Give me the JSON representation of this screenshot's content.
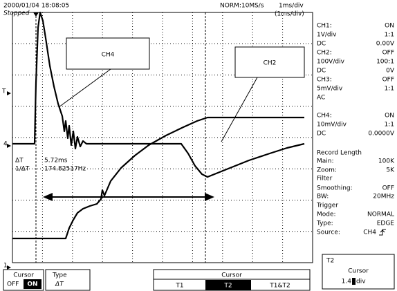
{
  "header": {
    "datetime": "2000/01/04  18:08:05",
    "status": "Stopped",
    "sampling": "NORM:10MS/s",
    "timebase": "1ms/div",
    "zoom_timebase": "(1ms/div)"
  },
  "screen": {
    "markers": [
      "T",
      "4",
      "1"
    ],
    "readout": [
      [
        "ΔT",
        "5.72ms"
      ],
      [
        "1/ΔT",
        "174.82517Hz"
      ]
    ],
    "callouts": [
      "CH4",
      "CH2"
    ]
  },
  "side_panel": [
    [
      "CH1:",
      "ON"
    ],
    [
      "1V/div",
      "1:1"
    ],
    [
      "DC",
      "0.00V"
    ],
    [
      "CH2:",
      "OFF"
    ],
    [
      "100V/div",
      "100:1"
    ],
    [
      "DC",
      "0V"
    ],
    [
      "CH3:",
      "OFF"
    ],
    [
      "5mV/div",
      "1:1"
    ],
    [
      "AC",
      ""
    ],
    [
      "CH4:",
      "ON"
    ],
    [
      "10mV/div",
      "1:1"
    ],
    [
      "DC",
      "0.0000V"
    ],
    [
      "Record Length",
      ""
    ],
    [
      "Main:",
      "100K"
    ],
    [
      "Zoom:",
      "5K"
    ],
    [
      "Filter",
      ""
    ],
    [
      "Smoothing:",
      "OFF"
    ],
    [
      "BW:",
      "20MHz"
    ],
    [
      "Trigger",
      ""
    ],
    [
      "Mode:",
      "NORMAL"
    ],
    [
      "Type:",
      "EDGE"
    ],
    [
      "Source:",
      "CH4"
    ]
  ],
  "menu": {
    "cursor": {
      "label": "Cursor",
      "off": "OFF",
      "on": "ON"
    },
    "type": {
      "label": "Type",
      "value": "ΔT"
    },
    "select": {
      "label": "Cursor",
      "options": [
        "T1",
        "T2",
        "T1&T2"
      ]
    },
    "position": {
      "title": "T2",
      "label": "Cursor",
      "value": "1.4",
      "unit": "div"
    }
  }
}
